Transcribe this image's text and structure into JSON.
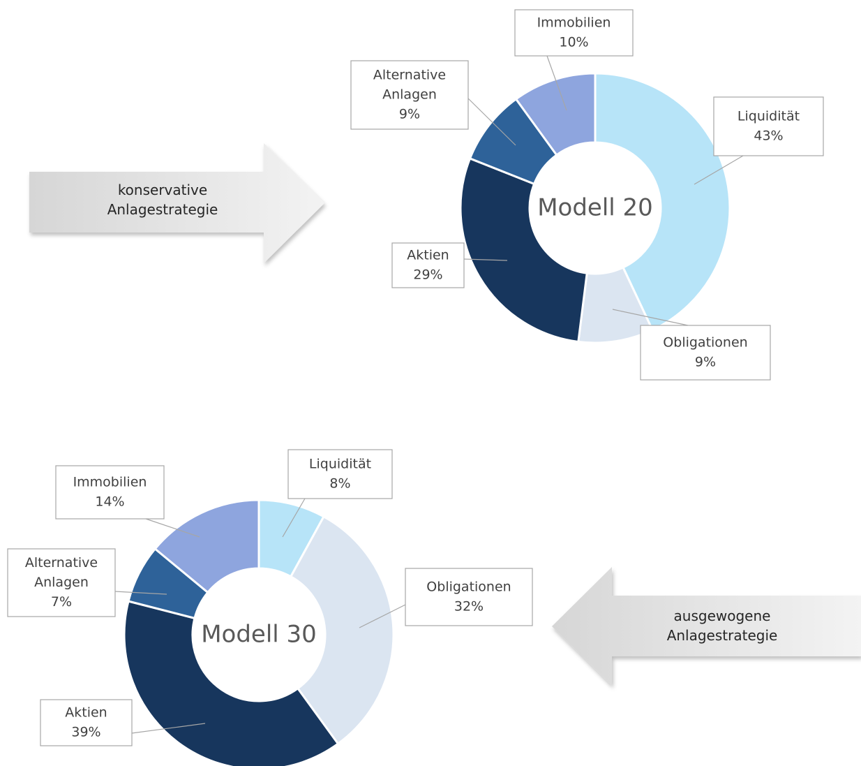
{
  "arrows": [
    {
      "line1": "konservative",
      "line2": "Anlagestrategie",
      "direction": "right"
    },
    {
      "line1": "ausgewogene",
      "line2": "Anlagestrategie",
      "direction": "left"
    }
  ],
  "colors": {
    "Liquidität": "#b7e4f8",
    "Obligationen": "#dbe5f1",
    "Aktien": "#17365d",
    "Alternative Anlagen": "#2e6299",
    "Immobilien": "#8ea5de",
    "arrow_light": "#efefef",
    "arrow_dark": "#d5d5d5"
  },
  "chart_data": [
    {
      "type": "pie",
      "donut": true,
      "center_label": "Modell 20",
      "categories": [
        "Liquidität",
        "Obligationen",
        "Aktien",
        "Alternative Anlagen",
        "Immobilien"
      ],
      "values": [
        43,
        9,
        29,
        9,
        10
      ],
      "data_labels": [
        "Liquidität\n43%",
        "Obligationen\n9%",
        "Aktien\n29%",
        "Alternative\nAnlagen\n9%",
        "Immobilien\n10%"
      ]
    },
    {
      "type": "pie",
      "donut": true,
      "center_label": "Modell 30",
      "categories": [
        "Liquidität",
        "Obligationen",
        "Aktien",
        "Alternative Anlagen",
        "Immobilien"
      ],
      "values": [
        8,
        32,
        39,
        7,
        14
      ],
      "data_labels": [
        "Liquidität\n8%",
        "Obligationen\n32%",
        "Aktien\n39%",
        "Alternative\nAnlagen\n7%",
        "Immobilien\n14%"
      ]
    }
  ]
}
